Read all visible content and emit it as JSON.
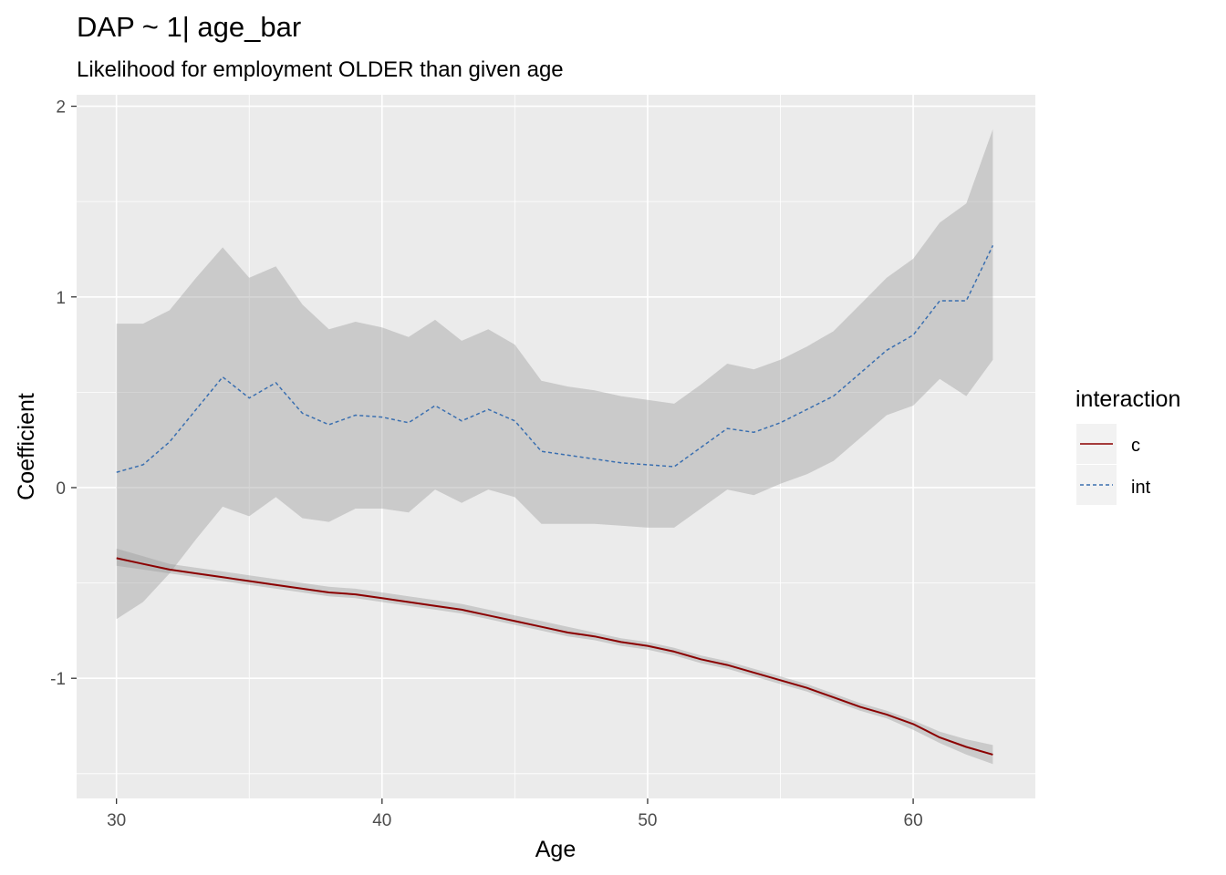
{
  "chart_data": {
    "type": "line",
    "title": "DAP ~ 1| age_bar",
    "subtitle": "Likelihood for employment OLDER than given age",
    "xlabel": "Age",
    "ylabel": "Coefficient",
    "xlim": [
      28.5,
      64.6
    ],
    "ylim": [
      -1.63,
      2.06
    ],
    "x_ticks": [
      30,
      40,
      50,
      60
    ],
    "y_ticks": [
      -1,
      0,
      1,
      2
    ],
    "grid": true,
    "legend": {
      "title": "interaction",
      "position": "right"
    },
    "x": [
      30,
      31,
      32,
      33,
      34,
      35,
      36,
      37,
      38,
      39,
      40,
      41,
      42,
      43,
      44,
      45,
      46,
      47,
      48,
      49,
      50,
      51,
      52,
      53,
      54,
      55,
      56,
      57,
      58,
      59,
      60,
      61,
      62,
      63
    ],
    "series": [
      {
        "name": "c",
        "color": "#8b0000",
        "linetype": "solid",
        "values": [
          -0.37,
          -0.4,
          -0.43,
          -0.45,
          -0.47,
          -0.49,
          -0.51,
          -0.53,
          -0.55,
          -0.56,
          -0.58,
          -0.6,
          -0.62,
          -0.64,
          -0.67,
          -0.7,
          -0.73,
          -0.76,
          -0.78,
          -0.81,
          -0.83,
          -0.86,
          -0.9,
          -0.93,
          -0.97,
          -1.01,
          -1.05,
          -1.1,
          -1.15,
          -1.19,
          -1.24,
          -1.31,
          -1.36,
          -1.4
        ],
        "lower": [
          -0.41,
          -0.43,
          -0.45,
          -0.47,
          -0.49,
          -0.51,
          -0.53,
          -0.55,
          -0.57,
          -0.58,
          -0.6,
          -0.62,
          -0.64,
          -0.66,
          -0.69,
          -0.72,
          -0.75,
          -0.78,
          -0.8,
          -0.83,
          -0.85,
          -0.88,
          -0.92,
          -0.95,
          -0.99,
          -1.03,
          -1.07,
          -1.12,
          -1.17,
          -1.21,
          -1.27,
          -1.34,
          -1.4,
          -1.45
        ],
        "upper": [
          -0.32,
          -0.36,
          -0.4,
          -0.42,
          -0.44,
          -0.46,
          -0.48,
          -0.5,
          -0.52,
          -0.53,
          -0.55,
          -0.57,
          -0.59,
          -0.61,
          -0.64,
          -0.67,
          -0.7,
          -0.73,
          -0.76,
          -0.79,
          -0.81,
          -0.84,
          -0.88,
          -0.91,
          -0.95,
          -0.99,
          -1.03,
          -1.08,
          -1.13,
          -1.17,
          -1.22,
          -1.28,
          -1.32,
          -1.35
        ]
      },
      {
        "name": "int",
        "color": "#3a6fb0",
        "linetype": "dashed",
        "values": [
          0.08,
          0.12,
          0.24,
          0.41,
          0.58,
          0.47,
          0.55,
          0.39,
          0.33,
          0.38,
          0.37,
          0.34,
          0.43,
          0.35,
          0.41,
          0.35,
          0.19,
          0.17,
          0.15,
          0.13,
          0.12,
          0.11,
          0.21,
          0.31,
          0.29,
          0.34,
          0.41,
          0.48,
          0.6,
          0.72,
          0.8,
          0.98,
          0.98,
          1.27
        ],
        "lower": [
          -0.69,
          -0.6,
          -0.45,
          -0.27,
          -0.1,
          -0.15,
          -0.05,
          -0.16,
          -0.18,
          -0.11,
          -0.11,
          -0.13,
          -0.01,
          -0.08,
          -0.01,
          -0.05,
          -0.19,
          -0.19,
          -0.19,
          -0.2,
          -0.21,
          -0.21,
          -0.11,
          -0.01,
          -0.04,
          0.02,
          0.07,
          0.14,
          0.26,
          0.38,
          0.43,
          0.57,
          0.48,
          0.67
        ],
        "upper": [
          0.86,
          0.86,
          0.93,
          1.1,
          1.26,
          1.1,
          1.16,
          0.96,
          0.83,
          0.87,
          0.84,
          0.79,
          0.88,
          0.77,
          0.83,
          0.75,
          0.56,
          0.53,
          0.51,
          0.48,
          0.46,
          0.44,
          0.54,
          0.65,
          0.62,
          0.67,
          0.74,
          0.82,
          0.96,
          1.1,
          1.2,
          1.39,
          1.49,
          1.88
        ]
      }
    ]
  }
}
